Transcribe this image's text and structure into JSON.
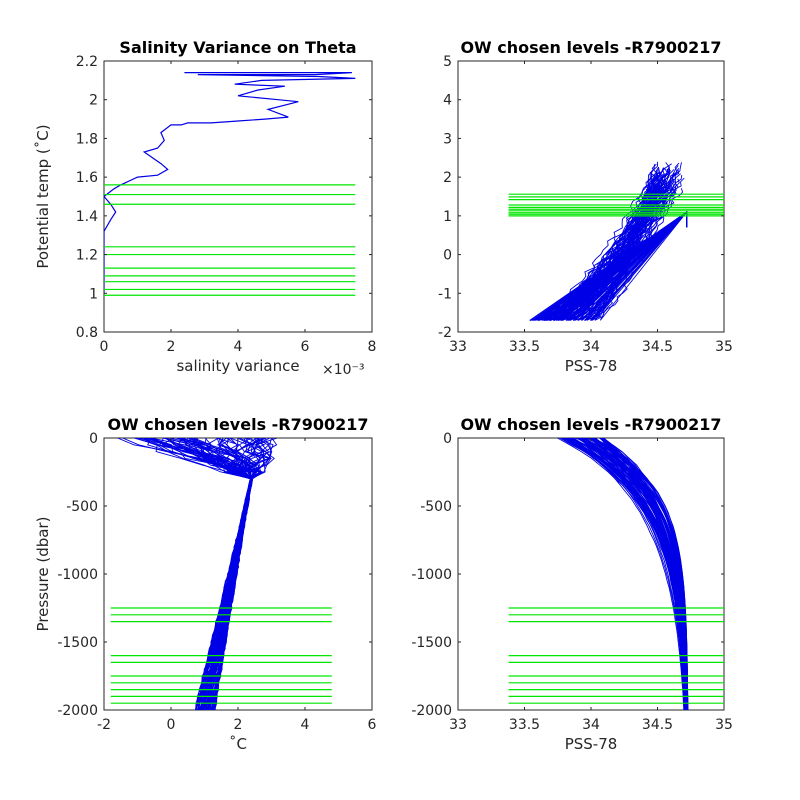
{
  "colors": {
    "profiles": "#0000e6",
    "levels": "#00e600",
    "axes": "#262626",
    "background": "#ffffff"
  },
  "chart_data": [
    {
      "type": "line",
      "title": "Salinity Variance on Theta",
      "xlabel": "salinity variance",
      "xexponent": "×10⁻³",
      "ylabel": "Potential temp (˚C)",
      "xlim": [
        0,
        8
      ],
      "ylim": [
        0.8,
        2.2
      ],
      "xticks": [
        "0",
        "2",
        "4",
        "6",
        "8"
      ],
      "yticks": [
        "0.8",
        "1",
        "1.2",
        "1.4",
        "1.6",
        "1.8",
        "2",
        "2.2"
      ],
      "series": [
        {
          "x": [
            0.0,
            0.0,
            0.2,
            0.35,
            0.2,
            0.0,
            0.3,
            0.5,
            1.0,
            1.6,
            1.9,
            1.7,
            1.2,
            1.6,
            1.8,
            1.7,
            2.0,
            2.3,
            2.5,
            2.5,
            3.2,
            4.0,
            4.8,
            5.5,
            4.9,
            5.8,
            5.2,
            4.0,
            4.6,
            5.4,
            3.9,
            4.7,
            7.5,
            6.4,
            2.8,
            6.3,
            7.4,
            2.4,
            3.1
          ],
          "y": [
            1.0,
            1.32,
            1.38,
            1.42,
            1.46,
            1.5,
            1.54,
            1.56,
            1.6,
            1.61,
            1.64,
            1.67,
            1.73,
            1.75,
            1.79,
            1.83,
            1.87,
            1.87,
            1.88,
            1.88,
            1.88,
            1.89,
            1.9,
            1.91,
            1.95,
            1.99,
            2.0,
            2.02,
            2.05,
            2.07,
            2.08,
            2.1,
            2.11,
            2.12,
            2.13,
            2.13,
            2.14,
            2.14,
            2.14
          ]
        }
      ],
      "hlines": {
        "xrange": [
          0,
          7.5
        ],
        "y": [
          0.99,
          1.02,
          1.06,
          1.09,
          1.13,
          1.2,
          1.24,
          1.46,
          1.51,
          1.56
        ]
      }
    },
    {
      "type": "line",
      "title": "OW chosen levels -R7900217",
      "xlabel": "PSS-78",
      "ylabel": "",
      "xlim": [
        33,
        35
      ],
      "ylim": [
        -2,
        5
      ],
      "xticks": [
        "33",
        "33.5",
        "34",
        "34.5",
        "35"
      ],
      "yticks": [
        "-2",
        "-1",
        "0",
        "1",
        "2",
        "3",
        "4",
        "5"
      ],
      "profile_count": 70,
      "profile_seed": 7,
      "hlines": {
        "xrange": [
          33.38,
          35
        ],
        "y": [
          1.0,
          1.04,
          1.08,
          1.13,
          1.17,
          1.22,
          1.28,
          1.42,
          1.49,
          1.56
        ]
      }
    },
    {
      "type": "line",
      "title": "OW chosen levels -R7900217",
      "xlabel": "˚C",
      "ylabel": "Pressure (dbar)",
      "xlim": [
        -2,
        6
      ],
      "ylim": [
        -2000,
        0
      ],
      "xticks": [
        "-2",
        "0",
        "2",
        "4",
        "6"
      ],
      "yticks": [
        "-2000",
        "-1500",
        "-1000",
        "-500",
        "0"
      ],
      "profile_count": 80,
      "profile_seed": 11,
      "hlines": {
        "xrange": [
          -1.8,
          4.8
        ],
        "y": [
          -1250,
          -1300,
          -1350,
          -1600,
          -1650,
          -1750,
          -1800,
          -1850,
          -1900,
          -1950
        ]
      }
    },
    {
      "type": "line",
      "title": "OW chosen levels -R7900217",
      "xlabel": "PSS-78",
      "ylabel": "",
      "xlim": [
        33,
        35
      ],
      "ylim": [
        -2000,
        0
      ],
      "xticks": [
        "33",
        "33.5",
        "34",
        "34.5",
        "35"
      ],
      "yticks": [
        "-2000",
        "-1500",
        "-1000",
        "-500",
        "0"
      ],
      "profile_count": 80,
      "profile_seed": 23,
      "hlines": {
        "xrange": [
          33.38,
          35
        ],
        "y": [
          -1250,
          -1300,
          -1350,
          -1600,
          -1650,
          -1750,
          -1800,
          -1850,
          -1900,
          -1950
        ]
      }
    }
  ]
}
